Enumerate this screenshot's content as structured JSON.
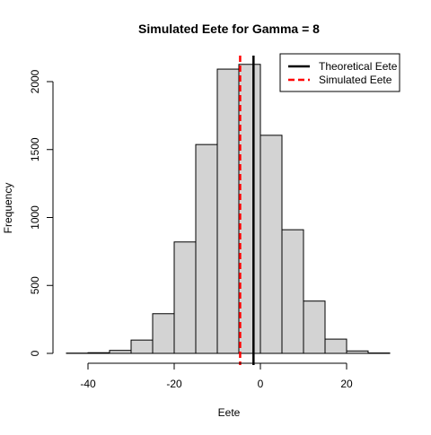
{
  "chart_data": {
    "type": "histogram",
    "title": "Simulated Eete for Gamma =  8",
    "xlabel": "Eete",
    "ylabel": "Frequency",
    "xlim": [
      -45,
      30
    ],
    "ylim": [
      0,
      2200
    ],
    "x_ticks": [
      -40,
      -20,
      0,
      20
    ],
    "y_ticks": [
      0,
      500,
      1000,
      1500,
      2000
    ],
    "bins": [
      {
        "start": -45,
        "end": -40,
        "count": 2
      },
      {
        "start": -40,
        "end": -35,
        "count": 5
      },
      {
        "start": -35,
        "end": -30,
        "count": 22
      },
      {
        "start": -30,
        "end": -25,
        "count": 98
      },
      {
        "start": -25,
        "end": -20,
        "count": 292
      },
      {
        "start": -20,
        "end": -15,
        "count": 820
      },
      {
        "start": -15,
        "end": -10,
        "count": 1537
      },
      {
        "start": -10,
        "end": -5,
        "count": 2092
      },
      {
        "start": -5,
        "end": 0,
        "count": 2127
      },
      {
        "start": 0,
        "end": 5,
        "count": 1605
      },
      {
        "start": 5,
        "end": 10,
        "count": 910
      },
      {
        "start": 10,
        "end": 15,
        "count": 385
      },
      {
        "start": 15,
        "end": 20,
        "count": 105
      },
      {
        "start": 20,
        "end": 25,
        "count": 18
      },
      {
        "start": 25,
        "end": 30,
        "count": 3
      }
    ],
    "reference_lines": [
      {
        "name": "Theoretical Eete",
        "x": -1.6,
        "color": "#000000",
        "style": "solid"
      },
      {
        "name": "Simulated Eete",
        "x": -4.7,
        "color": "#ff0000",
        "style": "dashed"
      }
    ],
    "bar_fill": "#d3d3d3",
    "bar_stroke": "#000000",
    "legend_position": "top-right"
  }
}
